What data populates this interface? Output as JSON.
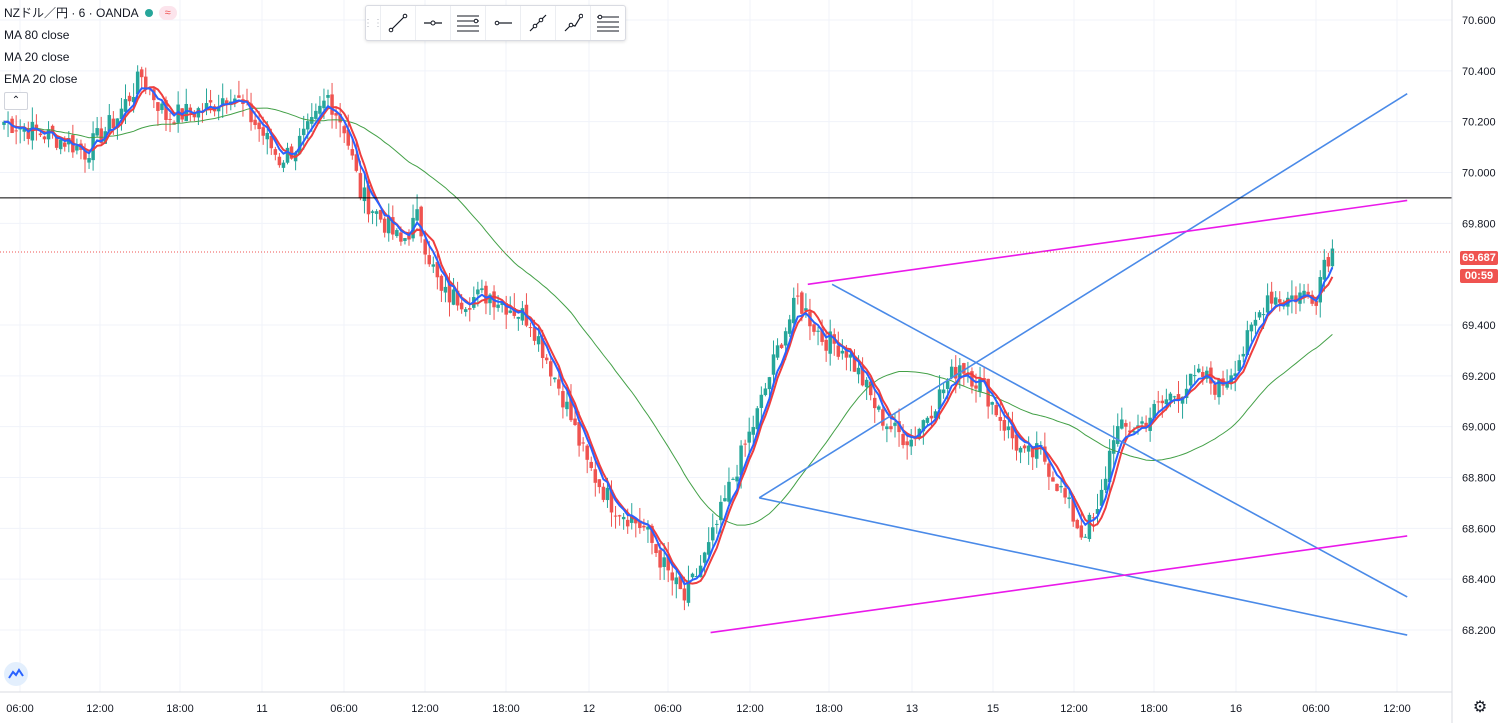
{
  "header": {
    "symbol": "NZドル／円 · 6 · OANDA",
    "indicators": [
      "MA 80 close",
      "MA 20 close",
      "EMA 20 close"
    ],
    "collapse_label": "⌃"
  },
  "price_tag": {
    "last_price": "69.687",
    "countdown": "00:59"
  },
  "toolbar": {
    "items": [
      "trend-line-icon",
      "horizontal-ray-icon",
      "parallel-channel-icon",
      "horizontal-line-icon",
      "extended-line-icon",
      "path-icon",
      "fib-retracement-icon"
    ]
  },
  "colors": {
    "up": "#26a69a",
    "down": "#ef5350",
    "ma80": "#43a047",
    "ma20": "#ef3e3e",
    "ema20": "#2962ff",
    "trendline_blue": "#4a8ae8",
    "trendline_magenta": "#ea19ea",
    "horizontal_line": "#000000",
    "price_line": "#ef5350",
    "grid": "#f0f3fa"
  },
  "chart_data": {
    "type": "candlestick",
    "y_axis": {
      "ticks": [
        "70.600",
        "70.400",
        "70.200",
        "70.000",
        "69.800",
        "69.400",
        "69.200",
        "69.000",
        "68.800",
        "68.600",
        "68.400",
        "68.200"
      ],
      "range": [
        68.0,
        70.67
      ]
    },
    "x_axis": {
      "ticks": [
        "06:00",
        "12:00",
        "18:00",
        "11",
        "06:00",
        "12:00",
        "18:00",
        "12",
        "06:00",
        "12:00",
        "18:00",
        "13",
        "15",
        "12:00",
        "18:00",
        "16",
        "06:00",
        "12:00"
      ]
    },
    "last_price": 69.687,
    "horizontal_line": 69.9,
    "price_path": [
      [
        0,
        70.2
      ],
      [
        4,
        70.16
      ],
      [
        8,
        70.12
      ],
      [
        10,
        70.08
      ],
      [
        14,
        70.22
      ],
      [
        17,
        70.38
      ],
      [
        20,
        70.22
      ],
      [
        25,
        70.25
      ],
      [
        28,
        70.32
      ],
      [
        32,
        70.15
      ],
      [
        34,
        70.05
      ],
      [
        36,
        70.1
      ],
      [
        38,
        70.18
      ],
      [
        40,
        70.3
      ],
      [
        42,
        70.18
      ],
      [
        44,
        69.92
      ],
      [
        47,
        69.8
      ],
      [
        49,
        69.72
      ],
      [
        51,
        69.82
      ],
      [
        52,
        69.72
      ],
      [
        54,
        69.52
      ],
      [
        57,
        69.5
      ],
      [
        60,
        69.52
      ],
      [
        65,
        69.42
      ],
      [
        69,
        69.12
      ],
      [
        72,
        68.85
      ],
      [
        75,
        68.7
      ],
      [
        77,
        68.65
      ],
      [
        79,
        68.6
      ],
      [
        82,
        68.42
      ],
      [
        84,
        68.32
      ],
      [
        87,
        68.52
      ],
      [
        90,
        68.8
      ],
      [
        93,
        69.05
      ],
      [
        96,
        69.35
      ],
      [
        98,
        69.5
      ],
      [
        101,
        69.35
      ],
      [
        104,
        69.3
      ],
      [
        106,
        69.18
      ],
      [
        108,
        69.05
      ],
      [
        110,
        68.98
      ],
      [
        112,
        68.95
      ],
      [
        115,
        69.1
      ],
      [
        118,
        69.25
      ],
      [
        121,
        69.15
      ],
      [
        124,
        68.98
      ],
      [
        126,
        68.88
      ],
      [
        128,
        68.9
      ],
      [
        130,
        68.78
      ],
      [
        133,
        68.58
      ],
      [
        135,
        68.65
      ],
      [
        137,
        68.98
      ],
      [
        140,
        69.0
      ],
      [
        144,
        69.12
      ],
      [
        148,
        69.2
      ],
      [
        150,
        69.15
      ],
      [
        153,
        69.3
      ],
      [
        156,
        69.52
      ],
      [
        158,
        69.5
      ],
      [
        160,
        69.52
      ],
      [
        162,
        69.52
      ],
      [
        163,
        69.66
      ],
      [
        164,
        69.69
      ]
    ],
    "trendlines": [
      {
        "color": "blue",
        "from": [
          92,
          68.72
        ],
        "to": [
          172,
          70.31
        ]
      },
      {
        "color": "blue",
        "from": [
          101,
          69.56
        ],
        "to": [
          172,
          68.33
        ]
      },
      {
        "color": "blue",
        "from": [
          92,
          68.72
        ],
        "to": [
          172,
          68.18
        ]
      },
      {
        "color": "magenta",
        "from": [
          98,
          69.56
        ],
        "to": [
          172,
          69.89
        ]
      },
      {
        "color": "magenta",
        "from": [
          86,
          68.19
        ],
        "to": [
          172,
          68.57
        ]
      }
    ]
  }
}
